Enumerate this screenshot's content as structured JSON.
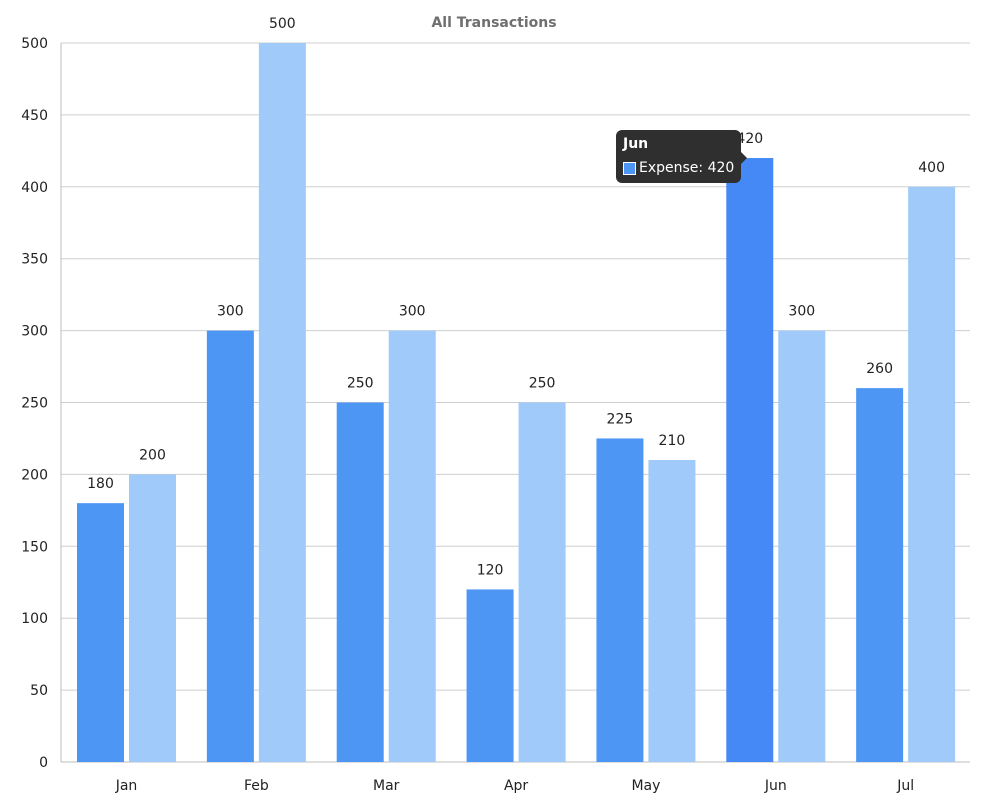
{
  "chart_data": {
    "type": "bar",
    "title": "All Transactions",
    "xlabel": "",
    "ylabel": "",
    "ylim": [
      0,
      500
    ],
    "yticks": [
      0,
      50,
      100,
      150,
      200,
      250,
      300,
      350,
      400,
      450,
      500
    ],
    "grid": true,
    "categories": [
      "Jan",
      "Feb",
      "Mar",
      "Apr",
      "May",
      "Jun",
      "Jul"
    ],
    "series": [
      {
        "name": "Expense",
        "color": "#4e96f4",
        "values": [
          180,
          300,
          250,
          120,
          225,
          420,
          260
        ]
      },
      {
        "color": "#9fcaf9",
        "values": [
          200,
          500,
          300,
          250,
          210,
          300,
          400
        ]
      }
    ],
    "highlight": {
      "series": 0,
      "category": 5,
      "color": "#4489f5"
    }
  },
  "tooltip": {
    "title": "Jun",
    "label": "Expense: 420",
    "swatch_color": "#4e96f4"
  }
}
